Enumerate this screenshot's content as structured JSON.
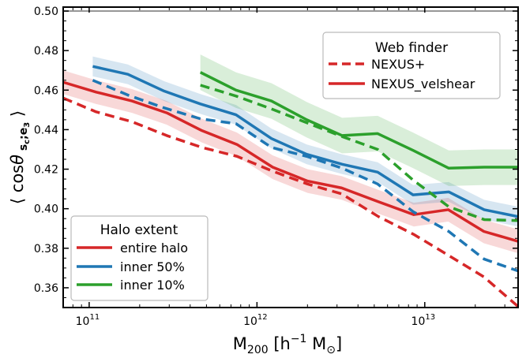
{
  "chart_data": {
    "type": "line",
    "title": "",
    "xlabel": "M200 [h⁻¹ M⊙]",
    "ylabel": "⟨ cosθ s_c;e3 ⟩",
    "xscale": "log",
    "xlim": [
      70000000000.0,
      36000000000000.0
    ],
    "ylim": [
      0.35,
      0.502
    ],
    "reference_line": 0.5,
    "y_ticks": [
      "0.36",
      "0.38",
      "0.40",
      "0.42",
      "0.44",
      "0.46",
      "0.48",
      "0.50"
    ],
    "x_ticks": [
      {
        "value": 100000000000.0,
        "base": "10",
        "exp": "11"
      },
      {
        "value": 1000000000000.0,
        "base": "10",
        "exp": "12"
      },
      {
        "value": 10000000000000.0,
        "base": "10",
        "exp": "13"
      }
    ],
    "colors": {
      "red": "#d62728",
      "blue": "#1f77b4",
      "green": "#2ca02c",
      "refline": "#888888"
    },
    "series": [
      {
        "name": "entire halo NEXUS_velshear",
        "extent": "entire halo",
        "finder": "NEXUS_velshear",
        "color": "#d62728",
        "style": "solid",
        "band": 0.006,
        "x": [
          70000000000.0,
          110000000000.0,
          180000000000.0,
          290000000000.0,
          470000000000.0,
          760000000000.0,
          1240000000000.0,
          2000000000000.0,
          3200000000000.0,
          5300000000000.0,
          8600000000000.0,
          13800000000000.0,
          22500000000000.0,
          36000000000000.0
        ],
        "y": [
          0.464,
          0.459,
          0.4545,
          0.4485,
          0.4395,
          0.4325,
          0.421,
          0.414,
          0.4105,
          0.4035,
          0.397,
          0.3995,
          0.3885,
          0.3835
        ]
      },
      {
        "name": "entire halo NEXUS+",
        "extent": "entire halo",
        "finder": "NEXUS+",
        "color": "#d62728",
        "style": "dashed",
        "band": 0,
        "x": [
          70000000000.0,
          110000000000.0,
          180000000000.0,
          290000000000.0,
          470000000000.0,
          760000000000.0,
          1240000000000.0,
          2000000000000.0,
          3200000000000.0,
          5300000000000.0,
          8600000000000.0,
          13800000000000.0,
          22500000000000.0,
          36000000000000.0
        ],
        "y": [
          0.456,
          0.449,
          0.444,
          0.437,
          0.431,
          0.4265,
          0.419,
          0.4125,
          0.4075,
          0.396,
          0.387,
          0.3765,
          0.3655,
          0.3505
        ]
      },
      {
        "name": "inner 50% NEXUS_velshear",
        "extent": "inner 50%",
        "finder": "NEXUS_velshear",
        "color": "#1f77b4",
        "style": "solid",
        "band": 0.005,
        "x": [
          105000000000.0,
          170000000000.0,
          280000000000.0,
          460000000000.0,
          750000000000.0,
          1220000000000.0,
          1980000000000.0,
          3220000000000.0,
          5240000000000.0,
          8520000000000.0,
          13900000000000.0,
          22600000000000.0,
          36000000000000.0
        ],
        "y": [
          0.472,
          0.468,
          0.4595,
          0.453,
          0.4475,
          0.4355,
          0.4275,
          0.4225,
          0.4185,
          0.407,
          0.4085,
          0.3995,
          0.396
        ]
      },
      {
        "name": "inner 50% NEXUS+",
        "extent": "inner 50%",
        "finder": "NEXUS+",
        "color": "#1f77b4",
        "style": "dashed",
        "band": 0,
        "x": [
          105000000000.0,
          170000000000.0,
          280000000000.0,
          460000000000.0,
          750000000000.0,
          1220000000000.0,
          1980000000000.0,
          3220000000000.0,
          5240000000000.0,
          8520000000000.0,
          13900000000000.0,
          22600000000000.0,
          36000000000000.0
        ],
        "y": [
          0.465,
          0.4575,
          0.451,
          0.4455,
          0.443,
          0.431,
          0.4265,
          0.4205,
          0.4125,
          0.3985,
          0.3885,
          0.3745,
          0.3685
        ]
      },
      {
        "name": "inner 10% NEXUS_velshear",
        "extent": "inner 10%",
        "finder": "NEXUS_velshear",
        "color": "#2ca02c",
        "style": "solid",
        "band": 0.009,
        "x": [
          460000000000.0,
          750000000000.0,
          1220000000000.0,
          1980000000000.0,
          3220000000000.0,
          5240000000000.0,
          8520000000000.0,
          13900000000000.0,
          22600000000000.0,
          36000000000000.0
        ],
        "y": [
          0.469,
          0.46,
          0.4545,
          0.445,
          0.437,
          0.438,
          0.4295,
          0.4205,
          0.421,
          0.421
        ]
      },
      {
        "name": "inner 10% NEXUS+",
        "extent": "inner 10%",
        "finder": "NEXUS+",
        "color": "#2ca02c",
        "style": "dashed",
        "band": 0,
        "x": [
          460000000000.0,
          750000000000.0,
          1220000000000.0,
          1980000000000.0,
          3220000000000.0,
          5240000000000.0,
          8520000000000.0,
          13900000000000.0,
          22600000000000.0,
          36000000000000.0
        ],
        "y": [
          0.4625,
          0.457,
          0.4505,
          0.4435,
          0.4365,
          0.43,
          0.4145,
          0.401,
          0.3945,
          0.394
        ]
      }
    ],
    "legends": {
      "web_finder": {
        "title": "Web finder",
        "placement": "upper-right",
        "entries": [
          {
            "label": "NEXUS+",
            "style": "dashed",
            "color": "#d62728"
          },
          {
            "label": "NEXUS_velshear",
            "style": "solid",
            "color": "#d62728"
          }
        ]
      },
      "halo_extent": {
        "title": "Halo extent",
        "placement": "lower-left",
        "entries": [
          {
            "label": "entire halo",
            "color": "#d62728"
          },
          {
            "label": "inner 50%",
            "color": "#1f77b4"
          },
          {
            "label": "inner 10%",
            "color": "#2ca02c"
          }
        ]
      }
    }
  }
}
